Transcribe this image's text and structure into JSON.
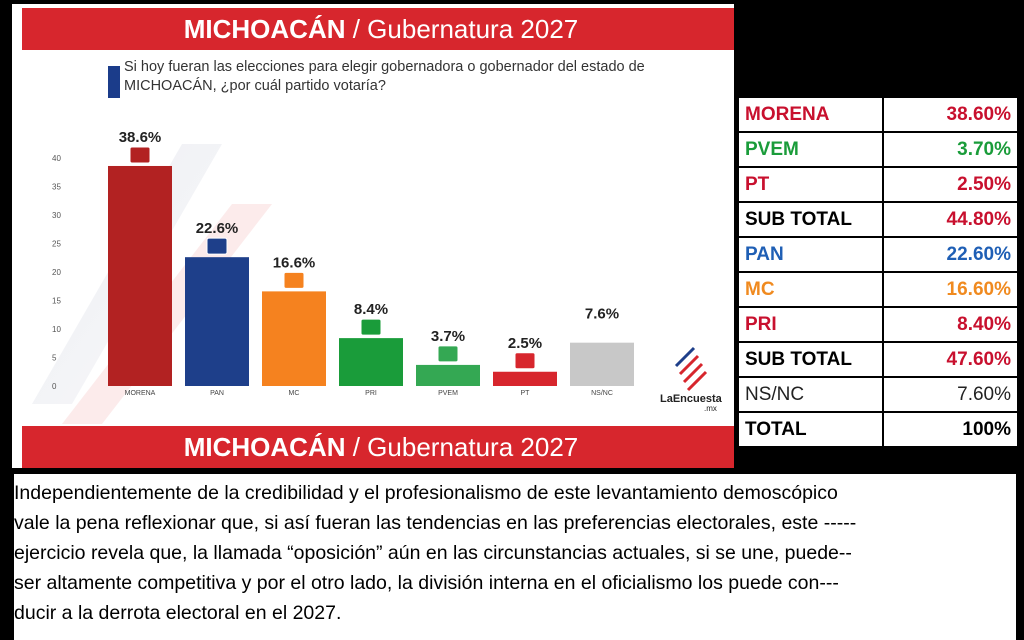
{
  "banner": {
    "state": "MICHOACÁN",
    "rest": " / Gubernatura 2027"
  },
  "question": "Si hoy fueran las elecciones para elegir gobernadora o gobernador del estado de MICHOACÁN, ¿por cuál partido votaría?",
  "brand": "LaEncuesta",
  "brand_suffix": ".mx",
  "colors": {
    "banner": "#d7262d",
    "morena": "#b22222",
    "pan": "#1e3f8a",
    "mc": "#f5821f",
    "pri": "#1a9c3a",
    "pvem": "#34a853",
    "pt": "#d7262d",
    "nsnc": "#c8c8c8"
  },
  "chart_data": {
    "type": "bar",
    "categories": [
      "MORENA",
      "PAN",
      "MC",
      "PRI",
      "PVEM",
      "PT",
      "NS/NC"
    ],
    "values": [
      38.6,
      22.6,
      16.6,
      8.4,
      3.7,
      2.5,
      7.6
    ],
    "data_labels": [
      "38.6%",
      "22.6%",
      "16.6%",
      "8.4%",
      "3.7%",
      "2.5%",
      "7.6%"
    ],
    "y_ticks": [
      "0",
      "5",
      "10",
      "15",
      "20",
      "25",
      "30",
      "35",
      "40"
    ],
    "ylim": [
      0,
      40
    ],
    "title": "",
    "xlabel": "",
    "ylabel": ""
  },
  "table": [
    {
      "name": "MORENA",
      "value": "38.60%",
      "color": "red"
    },
    {
      "name": "PVEM",
      "value": "3.70%",
      "color": "green"
    },
    {
      "name": "PT",
      "value": "2.50%",
      "color": "red"
    },
    {
      "name": "SUB TOTAL",
      "value": "44.80%",
      "color": "black",
      "value_color": "red"
    },
    {
      "name": "PAN",
      "value": "22.60%",
      "color": "blue"
    },
    {
      "name": "MC",
      "value": "16.60%",
      "color": "orange"
    },
    {
      "name": "PRI",
      "value": "8.40%",
      "color": "red"
    },
    {
      "name": "SUB TOTAL",
      "value": "47.60%",
      "color": "black",
      "value_color": "red"
    },
    {
      "name": "NS/NC",
      "value": "7.60%",
      "color": "gray"
    },
    {
      "name": "TOTAL",
      "value": "100%",
      "color": "black"
    }
  ],
  "paragraph": [
    "Independientemente de la credibilidad y el profesionalismo de este levantamiento demoscópico",
    "vale la pena reflexionar que, si así fueran las tendencias en las preferencias electorales, este -----",
    "ejercicio revela que, la llamada “oposición” aún en las circunstancias actuales, si se une, puede--",
    "ser altamente competitiva y por el otro lado, la división interna en el oficialismo los puede con---",
    "ducir a la derrota electoral en el 2027."
  ]
}
